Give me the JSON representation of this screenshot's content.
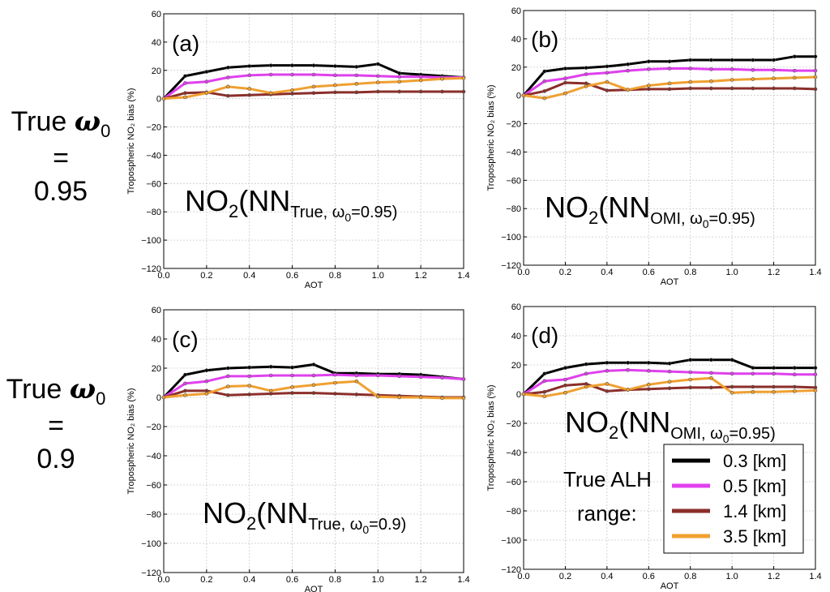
{
  "rows": [
    {
      "true_prefix": "True",
      "omega_symbol": "ω",
      "omega_sub": "0",
      "equals": "=",
      "value": "0.95"
    },
    {
      "true_prefix": "True",
      "omega_symbol": "ω",
      "omega_sub": "0",
      "equals": "=",
      "value": "0.9"
    }
  ],
  "legend": {
    "title_line1": "True ALH",
    "title_line2": "range:"
  },
  "colors": {
    "0.3 [km]": "#000000",
    "0.5 [km]": "#e040ee",
    "1.4 [km]": "#8b2e2a",
    "3.5 [km]": "#f0a030"
  },
  "chart_data": [
    {
      "type": "line",
      "panel_label": "(a)",
      "annotation": {
        "main": "NO",
        "sub1": "2",
        "open": "(NN",
        "sub2": "True, ω",
        "sub3": "0",
        "rest": "=0.95)"
      },
      "xlabel": "AOT",
      "ylabel": "Tropospheric NO₂ bias (%)",
      "xlim": [
        0.0,
        1.4
      ],
      "ylim": [
        -120,
        60
      ],
      "xticks": [
        0.0,
        0.2,
        0.4,
        0.6,
        0.8,
        1.0,
        1.2,
        1.4
      ],
      "xtick_labels": [
        "0.0",
        "0.2",
        "0.4",
        "0.6",
        "0.8",
        "1.0",
        "1.2",
        "1.4"
      ],
      "yticks": [
        -120,
        -100,
        -80,
        -60,
        -40,
        -20,
        0,
        20,
        40,
        60
      ],
      "ytick_labels": [
        "−120",
        "−100",
        "−80",
        "−60",
        "−40",
        "−20",
        "0",
        "20",
        "40",
        "60"
      ],
      "grid": true,
      "x": [
        0.0,
        0.1,
        0.2,
        0.3,
        0.4,
        0.5,
        0.6,
        0.7,
        0.8,
        0.9,
        1.0,
        1.1,
        1.2,
        1.3,
        1.4
      ],
      "series": [
        {
          "name": "0.3 [km]",
          "values": [
            0,
            16,
            19,
            22,
            23,
            23.5,
            23.5,
            23.5,
            23,
            22.5,
            24.5,
            18,
            17,
            16,
            15
          ]
        },
        {
          "name": "0.5 [km]",
          "values": [
            0,
            11,
            12,
            15,
            16.5,
            17,
            17,
            17,
            16.5,
            16.5,
            16,
            15.5,
            15.5,
            15,
            15
          ]
        },
        {
          "name": "1.4 [km]",
          "values": [
            0,
            4,
            4.5,
            2,
            2.5,
            3,
            3.5,
            4,
            4.5,
            4.5,
            5,
            5,
            5,
            5,
            5
          ]
        },
        {
          "name": "3.5 [km]",
          "values": [
            0,
            1,
            4,
            8.5,
            7,
            4,
            6,
            8.5,
            9.5,
            10.5,
            11.5,
            12,
            13,
            14,
            14.5
          ]
        }
      ]
    },
    {
      "type": "line",
      "panel_label": "(b)",
      "annotation": {
        "main": "NO",
        "sub1": "2",
        "open": "(NN",
        "sub2": "OMI, ω",
        "sub3": "0",
        "rest": "=0.95)"
      },
      "xlabel": "AOT",
      "ylabel": "Tropospheric NO₂ bias (%)",
      "xlim": [
        0.0,
        1.4
      ],
      "ylim": [
        -120,
        60
      ],
      "xticks": [
        0.0,
        0.2,
        0.4,
        0.6,
        0.8,
        1.0,
        1.2,
        1.4
      ],
      "xtick_labels": [
        "0.0",
        "0.2",
        "0.4",
        "0.6",
        "0.8",
        "1.0",
        "1.2",
        "1.4"
      ],
      "yticks": [
        -120,
        -100,
        -80,
        -60,
        -40,
        -20,
        0,
        20,
        40,
        60
      ],
      "ytick_labels": [
        "−120",
        "−100",
        "−80",
        "−60",
        "−40",
        "−20",
        "0",
        "20",
        "40",
        "60"
      ],
      "grid": true,
      "x": [
        0.0,
        0.1,
        0.2,
        0.3,
        0.4,
        0.5,
        0.6,
        0.7,
        0.8,
        0.9,
        1.0,
        1.1,
        1.2,
        1.3,
        1.4
      ],
      "series": [
        {
          "name": "0.3 [km]",
          "values": [
            0,
            17,
            19,
            19.5,
            20.5,
            22,
            24,
            24,
            25,
            25,
            25,
            25,
            25,
            27.5,
            27.5
          ]
        },
        {
          "name": "0.5 [km]",
          "values": [
            0,
            10,
            12,
            15,
            16,
            17.5,
            18.5,
            19,
            19,
            18.5,
            18.5,
            18,
            18,
            17.5,
            17.5
          ]
        },
        {
          "name": "1.4 [km]",
          "values": [
            0,
            3,
            9,
            8.5,
            3.5,
            4,
            4.5,
            4.5,
            5,
            5,
            5,
            5,
            5,
            5,
            4.5
          ]
        },
        {
          "name": "3.5 [km]",
          "values": [
            0,
            -2,
            1.5,
            6.5,
            9.5,
            4,
            7,
            8.5,
            9.5,
            10,
            11,
            11.5,
            12,
            12.5,
            13
          ]
        }
      ]
    },
    {
      "type": "line",
      "panel_label": "(c)",
      "annotation": {
        "main": "NO",
        "sub1": "2",
        "open": "(NN",
        "sub2": "True, ω",
        "sub3": "0",
        "rest": "=0.9)"
      },
      "xlabel": "AOT",
      "ylabel": "Tropospheric NO₂ bias (%)",
      "xlim": [
        0.0,
        1.4
      ],
      "ylim": [
        -120,
        60
      ],
      "xticks": [
        0.0,
        0.2,
        0.4,
        0.6,
        0.8,
        1.0,
        1.2,
        1.4
      ],
      "xtick_labels": [
        "0.0",
        "0.2",
        "0.4",
        "0.6",
        "0.8",
        "1.0",
        "1.2",
        "1.4"
      ],
      "yticks": [
        -120,
        -100,
        -80,
        -60,
        -40,
        -20,
        0,
        20,
        40,
        60
      ],
      "ytick_labels": [
        "−120",
        "−100",
        "−80",
        "−60",
        "−40",
        "−20",
        "0",
        "20",
        "40",
        "60"
      ],
      "grid": true,
      "x": [
        0.0,
        0.1,
        0.2,
        0.3,
        0.4,
        0.5,
        0.6,
        0.7,
        0.8,
        0.9,
        1.0,
        1.1,
        1.2,
        1.3,
        1.4
      ],
      "series": [
        {
          "name": "0.3 [km]",
          "values": [
            0,
            15.5,
            18.5,
            20,
            20.5,
            21,
            20.5,
            22.5,
            16.5,
            16.5,
            16,
            16,
            15.5,
            14,
            12.5
          ]
        },
        {
          "name": "0.5 [km]",
          "values": [
            0,
            9.5,
            11,
            14.5,
            14.5,
            15,
            15,
            15,
            15.5,
            15,
            15,
            14.5,
            14,
            13.5,
            12.5
          ]
        },
        {
          "name": "1.4 [km]",
          "values": [
            0,
            4.5,
            4.5,
            1.5,
            2,
            2.5,
            3,
            3,
            2.5,
            2,
            1.5,
            1,
            0.5,
            0,
            0
          ]
        },
        {
          "name": "3.5 [km]",
          "values": [
            0,
            1.5,
            2.5,
            7.5,
            8,
            4.5,
            7,
            8.5,
            10,
            11,
            0.5,
            0,
            0,
            -0.5,
            -0.5
          ]
        }
      ]
    },
    {
      "type": "line",
      "panel_label": "(d)",
      "annotation": {
        "main": "NO",
        "sub1": "2",
        "open": "(NN",
        "sub2": "OMI, ω",
        "sub3": "0",
        "rest": "=0.95)"
      },
      "xlabel": "AOT",
      "ylabel": "Tropospheric NO₂ bias (%)",
      "xlim": [
        0.0,
        1.4
      ],
      "ylim": [
        -120,
        60
      ],
      "xticks": [
        0.0,
        0.2,
        0.4,
        0.6,
        0.8,
        1.0,
        1.2,
        1.4
      ],
      "xtick_labels": [
        "0.0",
        "0.2",
        "0.4",
        "0.6",
        "0.8",
        "1.0",
        "1.2",
        "1.4"
      ],
      "yticks": [
        -120,
        -100,
        -80,
        -60,
        -40,
        -20,
        0,
        20,
        40,
        60
      ],
      "ytick_labels": [
        "−120",
        "−100",
        "−80",
        "−60",
        "−40",
        "−20",
        "0",
        "20",
        "40",
        "60"
      ],
      "grid": true,
      "x": [
        0.0,
        0.1,
        0.2,
        0.3,
        0.4,
        0.5,
        0.6,
        0.7,
        0.8,
        0.9,
        1.0,
        1.1,
        1.2,
        1.3,
        1.4
      ],
      "series": [
        {
          "name": "0.3 [km]",
          "values": [
            0,
            14,
            18,
            20.5,
            21.5,
            21.5,
            21.5,
            21,
            23.5,
            23.5,
            23.5,
            18,
            18,
            18,
            18
          ]
        },
        {
          "name": "0.5 [km]",
          "values": [
            0,
            9,
            10,
            14,
            16,
            16.5,
            16,
            15.5,
            15,
            14.5,
            14,
            14,
            14,
            13.5,
            13.5
          ]
        },
        {
          "name": "1.4 [km]",
          "values": [
            0,
            1.5,
            6,
            7,
            2,
            3,
            3.5,
            4,
            4.5,
            4.5,
            5,
            5,
            5,
            5,
            4.5
          ]
        },
        {
          "name": "3.5 [km]",
          "values": [
            0,
            -1.5,
            1,
            5,
            7,
            3,
            6.5,
            8.5,
            10,
            11,
            1,
            1.5,
            1.5,
            2,
            2.5
          ]
        }
      ]
    }
  ]
}
